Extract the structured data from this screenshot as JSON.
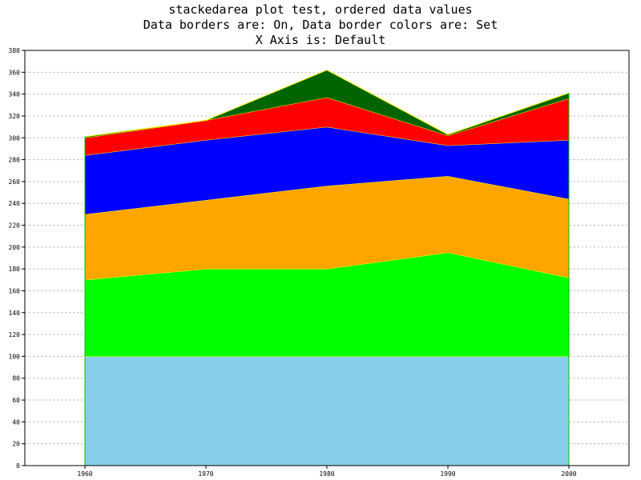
{
  "title_lines": [
    "stackedarea plot test, ordered data values",
    "Data borders are: On, Data border colors are: Set",
    "X Axis is: Default"
  ],
  "chart_data": {
    "type": "area",
    "stacked": true,
    "title": "stackedarea plot test, ordered data values",
    "subtitle": "Data borders are: On, Data border colors are: Set / X Axis is: Default",
    "xlabel": "",
    "ylabel": "",
    "categories": [
      "1960",
      "1970",
      "1980",
      "1990",
      "2000"
    ],
    "ylim": [
      0,
      380
    ],
    "ytick_step": 20,
    "grid": "horizontal-dashed",
    "data_border_color": "#ffff00",
    "series": [
      {
        "color": "#87ceeb",
        "values": [
          100,
          100,
          100,
          100,
          100
        ]
      },
      {
        "color": "#00ff00",
        "values": [
          70,
          80,
          80,
          95,
          72
        ]
      },
      {
        "color": "#ffa500",
        "values": [
          60,
          63,
          76,
          70,
          72
        ]
      },
      {
        "color": "#0000ff",
        "values": [
          54,
          55,
          54,
          28,
          54
        ]
      },
      {
        "color": "#ff0000",
        "values": [
          16,
          18,
          27,
          9,
          38
        ]
      },
      {
        "color": "#006400",
        "values": [
          1,
          0,
          25,
          1,
          5
        ]
      }
    ]
  }
}
